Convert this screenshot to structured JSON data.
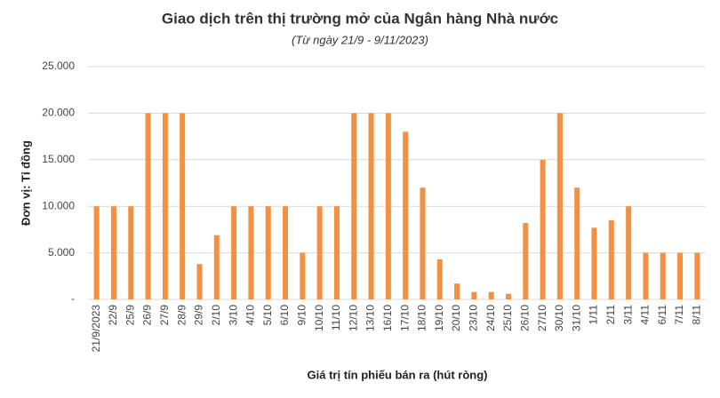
{
  "chart_data": {
    "type": "bar",
    "title": "Giao dịch trên thị trường mở của Ngân hàng Nhà nước",
    "subtitle": "(Từ ngày 21/9 - 9/11/2023)",
    "y_label": "Đơn vị: Tỉ đồng",
    "x_label": "Giá trị tín phiếu bán ra (hút ròng)",
    "categories": [
      "21/9/2023",
      "22/9",
      "25/9",
      "26/9",
      "27/9",
      "28/9",
      "29/9",
      "2/10",
      "3/10",
      "4/10",
      "5/10",
      "6/10",
      "9/10",
      "10/10",
      "11/10",
      "12/10",
      "13/10",
      "16/10",
      "17/10",
      "18/10",
      "19/10",
      "20/10",
      "23/10",
      "24/10",
      "25/10",
      "26/10",
      "27/10",
      "30/10",
      "31/10",
      "1/11",
      "2/11",
      "3/11",
      "4/11",
      "6/11",
      "7/11",
      "8/11"
    ],
    "values": [
      10000,
      10000,
      10000,
      20000,
      20000,
      20000,
      3800,
      6900,
      10000,
      10000,
      10000,
      10000,
      5000,
      10000,
      10000,
      20000,
      20000,
      20000,
      18000,
      12000,
      4300,
      1700,
      800,
      800,
      600,
      8200,
      15000,
      20000,
      12000,
      7700,
      8500,
      10000,
      5000,
      5000,
      5000,
      5000
    ],
    "color": "#f39041",
    "ylim": [
      0,
      25000
    ],
    "yticks": [
      {
        "value": 0,
        "label": "-"
      },
      {
        "value": 5000,
        "label": "5.000"
      },
      {
        "value": 10000,
        "label": "10.000"
      },
      {
        "value": 15000,
        "label": "15.000"
      },
      {
        "value": 20000,
        "label": "20.000"
      },
      {
        "value": 25000,
        "label": "25.000"
      }
    ],
    "grid": true
  }
}
